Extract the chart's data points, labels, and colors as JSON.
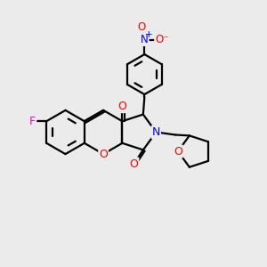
{
  "background_color": "#ebebeb",
  "line_color": "#000000",
  "bond_width": 1.6,
  "figsize": [
    3.0,
    3.0
  ],
  "dpi": 100,
  "atom_colors": {
    "F": "#ff00cc",
    "O": "#ff0000",
    "N": "#0000ff",
    "C": "#000000"
  },
  "font_size": 8.5
}
